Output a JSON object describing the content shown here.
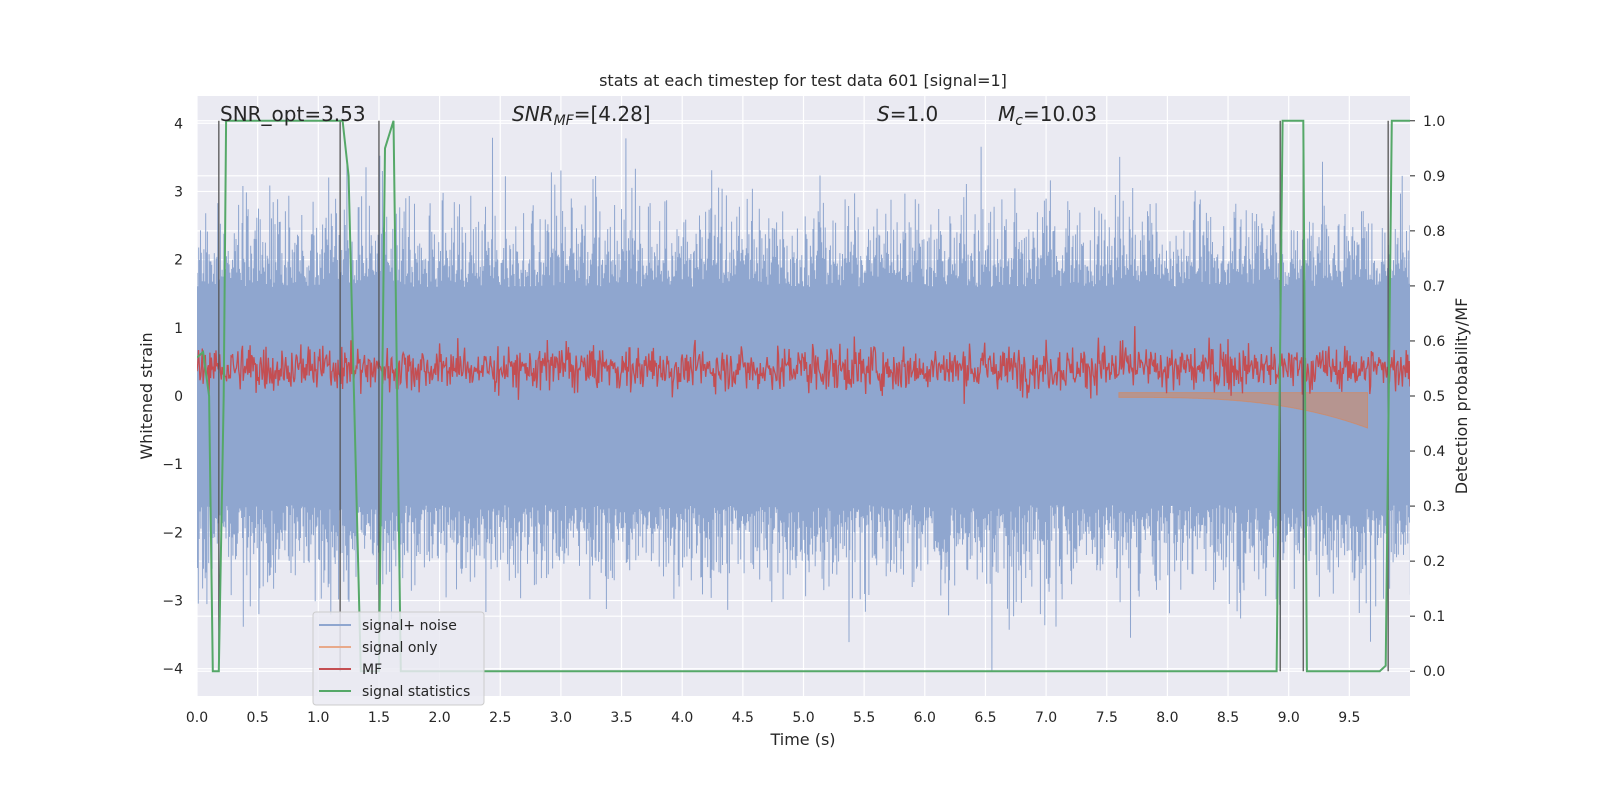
{
  "chart_data": {
    "type": "line",
    "title": "stats at each timestep for test data 601 [signal=1]",
    "xlabel": "Time (s)",
    "ylabel": "Whitened strain",
    "y2label": "Detection probability/MF",
    "xlim": [
      0,
      10
    ],
    "ylim": [
      -4.4,
      4.4
    ],
    "y2lim": [
      -0.045,
      1.045
    ],
    "x_ticks": [
      "0.0",
      "0.5",
      "1.0",
      "1.5",
      "2.0",
      "2.5",
      "3.0",
      "3.5",
      "4.0",
      "4.5",
      "5.0",
      "5.5",
      "6.0",
      "6.5",
      "7.0",
      "7.5",
      "8.0",
      "8.5",
      "9.0",
      "9.5"
    ],
    "y_ticks": [
      "4",
      "3",
      "2",
      "1",
      "0",
      "−1",
      "−2",
      "−3",
      "−4"
    ],
    "y2_ticks": [
      "1.0",
      "0.9",
      "0.8",
      "0.7",
      "0.6",
      "0.5",
      "0.4",
      "0.3",
      "0.2",
      "0.1",
      "0.0"
    ],
    "grid": true,
    "legend_position": "lower-left",
    "annotations": {
      "snr_opt": "SNR_opt=3.53",
      "snr_mf_sym": "SNR",
      "snr_mf_sub": "MF",
      "snr_mf_val": "=[4.28]",
      "s_sym": "S",
      "s_val": "=1.0",
      "mc_sym": "M",
      "mc_sub": "c",
      "mc_val": "=10.03"
    },
    "series": [
      {
        "name": "signal+ noise",
        "color": "#4c72b0",
        "note": "whitened strain, approx. noise amplitude range -4 to 4"
      },
      {
        "name": "signal only",
        "color": "#dd8452",
        "note": "chirp growing from ~0 at 8.0 s to about -0.5 at 9.65 s"
      },
      {
        "name": "MF",
        "color": "#c44e52",
        "y_range_approx": [
          0.0,
          1.0
        ]
      },
      {
        "name": "signal statistics",
        "color": "#55a868",
        "axis": "right",
        "x": [
          0.0,
          0.05,
          0.1,
          0.13,
          0.18,
          0.22,
          0.24,
          0.27,
          0.3,
          0.5,
          0.8,
          1.0,
          1.18,
          1.2,
          1.25,
          1.3,
          1.35,
          1.5,
          1.55,
          1.62,
          1.68,
          1.72,
          1.8,
          2.0,
          2.3,
          2.5,
          4.0,
          6.0,
          8.0,
          8.9,
          8.95,
          9.0,
          9.12,
          9.15,
          9.2,
          9.3,
          9.5,
          9.75,
          9.8,
          9.85,
          9.9,
          10.0
        ],
        "y": [
          0.57,
          0.58,
          0.5,
          0.0,
          0.0,
          0.5,
          1.0,
          1.0,
          1.0,
          1.0,
          1.0,
          1.0,
          1.0,
          1.0,
          0.9,
          0.45,
          0.0,
          0.0,
          0.95,
          1.0,
          0.0,
          0.0,
          0.0,
          0.0,
          0.0,
          0.0,
          0.0,
          0.0,
          0.0,
          0.0,
          1.0,
          1.0,
          1.0,
          0.0,
          0.0,
          0.0,
          0.0,
          0.0,
          0.01,
          1.0,
          1.0,
          1.0
        ]
      },
      {
        "name": "decision markers",
        "color": "#555555",
        "label_shown": false,
        "x": [
          0.18,
          1.18,
          1.5,
          8.93,
          9.12,
          9.82
        ]
      }
    ]
  }
}
